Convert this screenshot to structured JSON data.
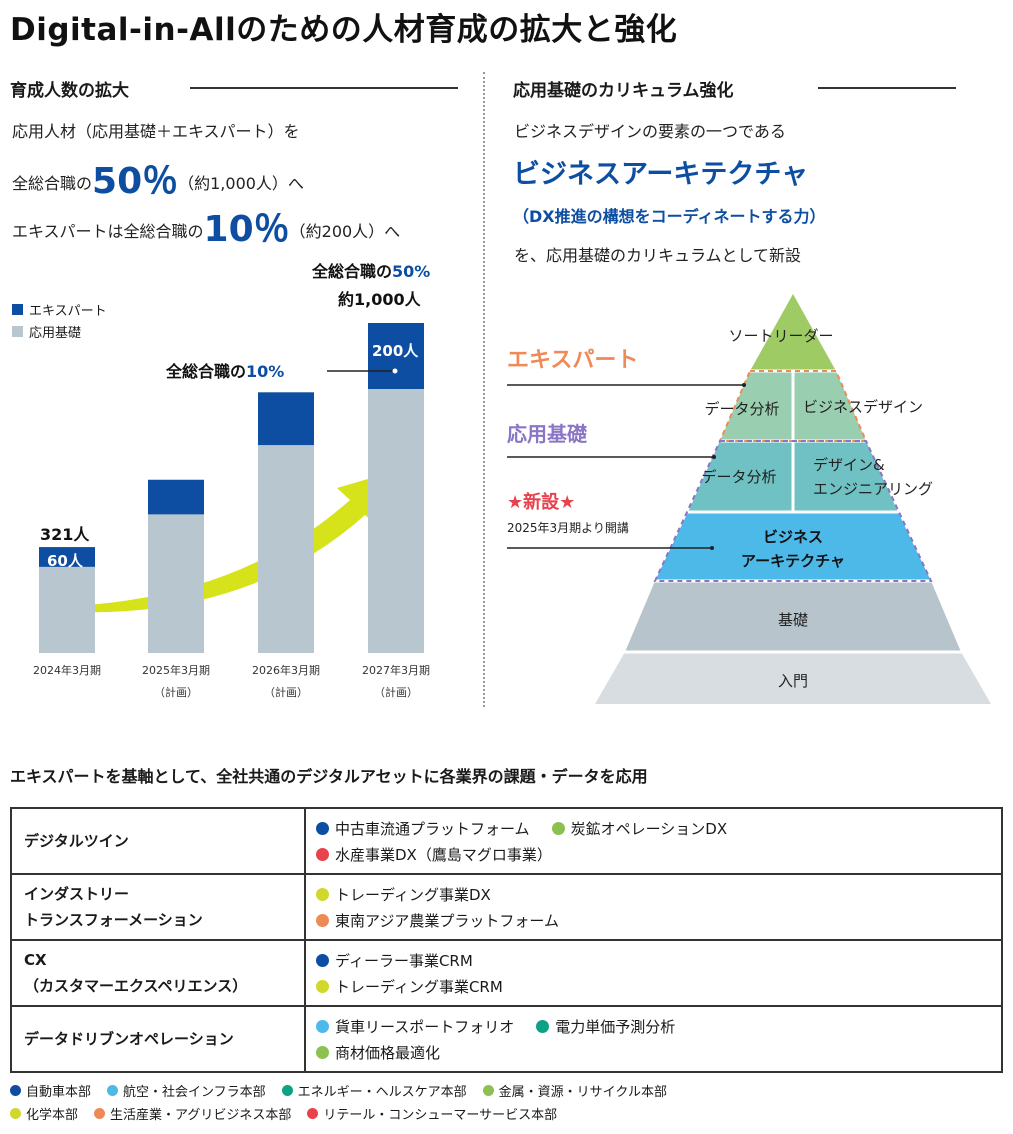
{
  "title": "Digital-in-Allのための人材育成の拡大と強化",
  "left": {
    "heading": "育成人数の拡大",
    "line1": "応用人材（応用基礎＋エキスパート）を",
    "line2_prefix": "全総合職の",
    "line2_big": "50％",
    "line2_suffix": "（約1,000人）へ",
    "line3_prefix": "エキスパートは全総合職の",
    "line3_big": "10％",
    "line3_suffix": "（約200人）へ"
  },
  "chart_data": {
    "type": "bar",
    "stacked": true,
    "categories": [
      "2024年3月期",
      "2025年3月期\n（計画）",
      "2026年3月期\n（計画）",
      "2027年3月期\n（計画）"
    ],
    "category_line1": [
      "2024年3月期",
      "2025年3月期",
      "2026年3月期",
      "2027年3月期"
    ],
    "category_line2": [
      "",
      "（計画）",
      "（計画）",
      "（計画）"
    ],
    "series": [
      {
        "name": "応用基礎",
        "values": [
          261,
          420,
          630,
          800
        ],
        "color": "#b8c6cf"
      },
      {
        "name": "エキスパート",
        "values": [
          60,
          105,
          160,
          200
        ],
        "color": "#0d4ea2"
      }
    ],
    "data_labels": {
      "first_total": "321人",
      "first_expert": "60人",
      "last_expert": "200人"
    },
    "annotation_top_prefix": "全総合職の",
    "annotation_top_pct": "50%",
    "annotation_top_line2": "約1,000人",
    "annotation_mid_prefix": "全総合職の",
    "annotation_mid_pct": "10%",
    "legend_placement": "top-left",
    "ylim": [
      0,
      1000
    ],
    "arrow_color": "#d6e21a"
  },
  "right": {
    "heading": "応用基礎のカリキュラム強化",
    "line1": "ビジネスデザインの要素の一つである",
    "highlight": "ビジネスアーキテクチャ",
    "sub": "（DX推進の構想をコーディネートする力）",
    "line4": "を、応用基礎のカリキュラムとして新設"
  },
  "pyramid": {
    "label_expert": "エキスパート",
    "label_applied": "応用基礎",
    "label_new": "★新設★",
    "label_new_sub": "2025年3月期より開講",
    "top": "ソートリーダー",
    "expert_left": "データ分析",
    "expert_right": "ビジネスデザイン",
    "applied_left": "データ分析",
    "applied_right_1": "デザイン&",
    "applied_right_2": "エンジニアリング",
    "new_1": "ビジネス",
    "new_2": "アーキテクチャ",
    "basic": "基礎",
    "intro": "入門",
    "colors": {
      "orange": "#ef8a57",
      "purple": "#8a76c4",
      "red": "#e8424d",
      "top": "#9fcb64",
      "expert": "#99cfb0",
      "applied": "#6fc1c3",
      "new": "#4cb9e9",
      "basic": "#b7c4cc",
      "intro": "#d8dde1"
    }
  },
  "table": {
    "heading": "エキスパートを基軸として、全社共通のデジタルアセットに各業界の課題・データを応用",
    "rows": [
      {
        "cat": [
          "デジタルツイン"
        ],
        "lines": [
          [
            {
              "label": "中古車流通プラットフォーム",
              "color": "#0d4ea2"
            },
            {
              "label": "炭鉱オペレーションDX",
              "color": "#8cc152"
            }
          ],
          [
            {
              "label": "水産事業DX（鷹島マグロ事業）",
              "color": "#e8424d"
            }
          ]
        ]
      },
      {
        "cat": [
          "インダストリー",
          "トランスフォーメーション"
        ],
        "lines": [
          [
            {
              "label": "トレーディング事業DX",
              "color": "#cfd82b"
            }
          ],
          [
            {
              "label": "東南アジア農業プラットフォーム",
              "color": "#ef8a57"
            }
          ]
        ]
      },
      {
        "cat": [
          "CX",
          "（カスタマーエクスペリエンス）"
        ],
        "lines": [
          [
            {
              "label": "ディーラー事業CRM",
              "color": "#0d4ea2"
            }
          ],
          [
            {
              "label": "トレーディング事業CRM",
              "color": "#cfd82b"
            }
          ]
        ]
      },
      {
        "cat": [
          "データドリブンオペレーション"
        ],
        "lines": [
          [
            {
              "label": "貨車リースポートフォリオ",
              "color": "#4cb9e9"
            },
            {
              "label": "電力単価予測分析",
              "color": "#0fa184"
            }
          ],
          [
            {
              "label": "商材価格最適化",
              "color": "#8cc152"
            }
          ]
        ]
      }
    ]
  },
  "key": {
    "row1": [
      {
        "label": "自動車本部",
        "color": "#0d4ea2"
      },
      {
        "label": "航空・社会インフラ本部",
        "color": "#4cb9e9"
      },
      {
        "label": "エネルギー・ヘルスケア本部",
        "color": "#0fa184"
      },
      {
        "label": "金属・資源・リサイクル本部",
        "color": "#8cc152"
      }
    ],
    "row2": [
      {
        "label": "化学本部",
        "color": "#cfd82b"
      },
      {
        "label": "生活産業・アグリビジネス本部",
        "color": "#ef8a57"
      },
      {
        "label": "リテール・コンシューマーサービス本部",
        "color": "#e8424d"
      }
    ]
  }
}
